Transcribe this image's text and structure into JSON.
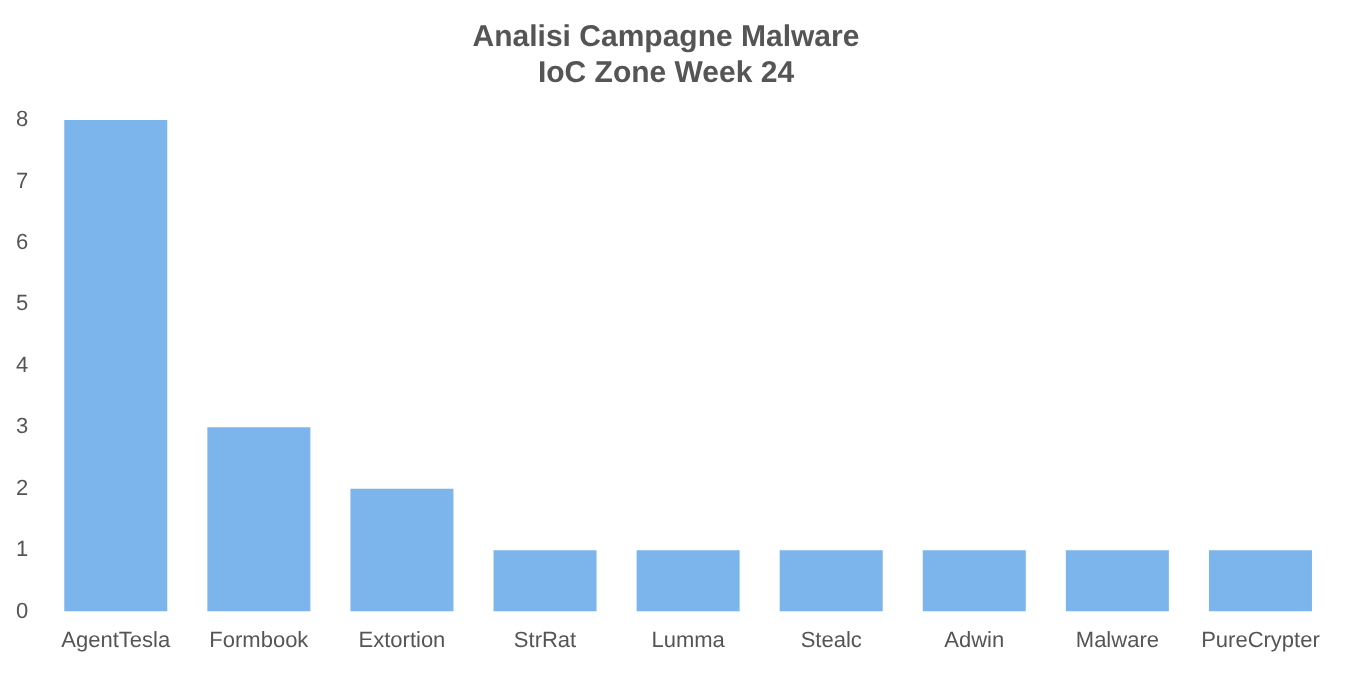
{
  "chart_data": {
    "type": "bar",
    "title": "Analisi Campagne Malware",
    "subtitle": "IoC Zone Week 24",
    "categories": [
      "AgentTesla",
      "Formbook",
      "Extortion",
      "StrRat",
      "Lumma",
      "Stealc",
      "Adwin",
      "Malware",
      "PureCrypter"
    ],
    "values": [
      8,
      3,
      2,
      1,
      1,
      1,
      1,
      1,
      1
    ],
    "color": "#7cb5ec",
    "ylim": [
      0,
      8
    ],
    "yticks": [
      0,
      1,
      2,
      3,
      4,
      5,
      6,
      7,
      8
    ],
    "grid": false,
    "legend": false
  }
}
